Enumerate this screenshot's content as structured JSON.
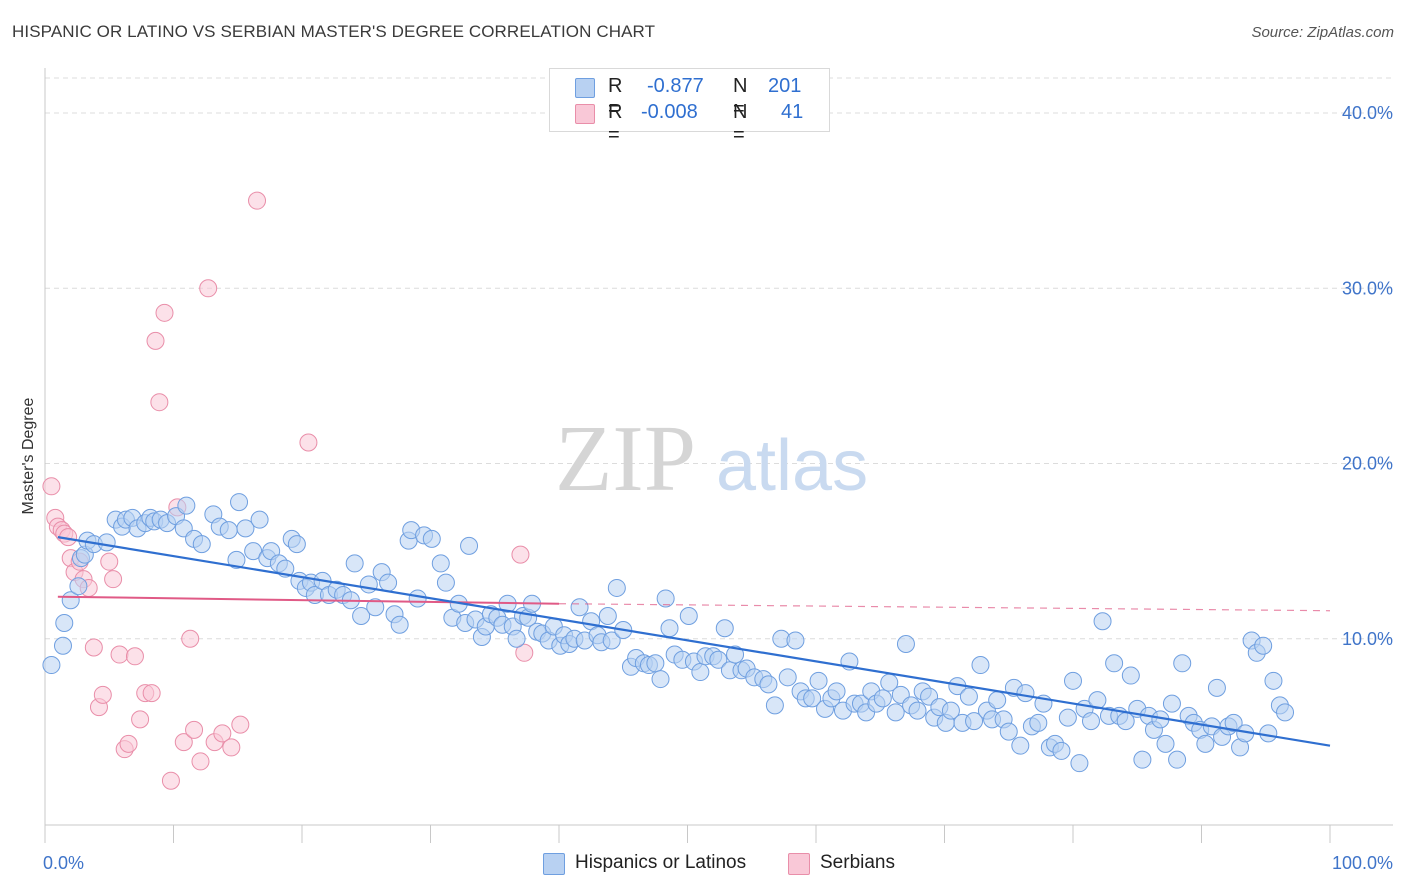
{
  "header": {
    "title": "HISPANIC OR LATINO VS SERBIAN MASTER'S DEGREE CORRELATION CHART",
    "source": "Source: ZipAtlas.com"
  },
  "stats_legend": {
    "r_label": "R =",
    "n_label": "N =",
    "rows": [
      {
        "r": "-0.877",
        "n": "201"
      },
      {
        "r": "-0.008",
        "n": "41"
      }
    ]
  },
  "watermark": {
    "part1": "ZIP",
    "part2": "atlas"
  },
  "colors": {
    "blue_fill": "#b8d1f2",
    "blue_stroke": "#6f9fe0",
    "blue_line": "#2f6fd0",
    "pink_fill": "#f9c8d7",
    "pink_stroke": "#e98ea9",
    "pink_line": "#e05a86",
    "tick_label": "#3f74c9",
    "grid": "#dcdcdc"
  },
  "chart_data": {
    "type": "scatter",
    "title": "HISPANIC OR LATINO VS SERBIAN MASTER'S DEGREE CORRELATION CHART",
    "xlabel": "",
    "ylabel": "Master's Degree",
    "xlim": [
      0,
      100
    ],
    "ylim": [
      0,
      42
    ],
    "x_tick_labels": [
      "0.0%",
      "100.0%"
    ],
    "y_ticks": [
      10,
      20,
      30,
      40
    ],
    "y_tick_labels": [
      "10.0%",
      "20.0%",
      "30.0%",
      "40.0%"
    ],
    "grid": true,
    "legend_position": "bottom-center",
    "series": [
      {
        "name": "Hispanics or Latinos",
        "color": "#6f9fe0",
        "R": -0.877,
        "N": 201,
        "trend": {
          "x": [
            1.0,
            100.0
          ],
          "y": [
            15.8,
            3.9
          ]
        },
        "points": [
          [
            0.5,
            8.5
          ],
          [
            1.4,
            9.6
          ],
          [
            1.5,
            10.9
          ],
          [
            2.0,
            12.2
          ],
          [
            2.6,
            13.0
          ],
          [
            2.8,
            14.6
          ],
          [
            3.1,
            14.8
          ],
          [
            3.3,
            15.6
          ],
          [
            3.8,
            15.4
          ],
          [
            4.8,
            15.5
          ],
          [
            5.5,
            16.8
          ],
          [
            6.0,
            16.4
          ],
          [
            6.3,
            16.8
          ],
          [
            6.8,
            16.9
          ],
          [
            7.2,
            16.3
          ],
          [
            7.8,
            16.6
          ],
          [
            8.2,
            16.9
          ],
          [
            8.5,
            16.7
          ],
          [
            9.0,
            16.8
          ],
          [
            9.5,
            16.6
          ],
          [
            10.2,
            17.0
          ],
          [
            10.8,
            16.3
          ],
          [
            11.0,
            17.6
          ],
          [
            11.6,
            15.7
          ],
          [
            12.2,
            15.4
          ],
          [
            13.1,
            17.1
          ],
          [
            13.6,
            16.4
          ],
          [
            14.3,
            16.2
          ],
          [
            14.9,
            14.5
          ],
          [
            15.1,
            17.8
          ],
          [
            15.6,
            16.3
          ],
          [
            16.2,
            15.0
          ],
          [
            16.7,
            16.8
          ],
          [
            17.3,
            14.6
          ],
          [
            17.6,
            15.0
          ],
          [
            18.2,
            14.3
          ],
          [
            18.7,
            14.0
          ],
          [
            19.2,
            15.7
          ],
          [
            19.6,
            15.4
          ],
          [
            19.8,
            13.3
          ],
          [
            20.3,
            12.9
          ],
          [
            20.7,
            13.2
          ],
          [
            21.0,
            12.5
          ],
          [
            21.6,
            13.3
          ],
          [
            22.1,
            12.5
          ],
          [
            22.7,
            12.8
          ],
          [
            23.2,
            12.5
          ],
          [
            23.8,
            12.2
          ],
          [
            24.1,
            14.3
          ],
          [
            24.6,
            11.3
          ],
          [
            25.2,
            13.1
          ],
          [
            25.7,
            11.8
          ],
          [
            26.2,
            13.8
          ],
          [
            26.7,
            13.2
          ],
          [
            27.2,
            11.4
          ],
          [
            27.6,
            10.8
          ],
          [
            28.3,
            15.6
          ],
          [
            28.5,
            16.2
          ],
          [
            29.0,
            12.3
          ],
          [
            29.5,
            15.9
          ],
          [
            30.1,
            15.7
          ],
          [
            30.8,
            14.3
          ],
          [
            31.2,
            13.2
          ],
          [
            31.7,
            11.2
          ],
          [
            32.2,
            12.0
          ],
          [
            32.7,
            10.9
          ],
          [
            33.0,
            15.3
          ],
          [
            33.5,
            11.1
          ],
          [
            34.0,
            10.1
          ],
          [
            34.3,
            10.7
          ],
          [
            34.7,
            11.4
          ],
          [
            35.2,
            11.2
          ],
          [
            35.6,
            10.8
          ],
          [
            36.0,
            12.0
          ],
          [
            36.4,
            10.7
          ],
          [
            36.7,
            10.0
          ],
          [
            37.2,
            11.3
          ],
          [
            37.6,
            11.2
          ],
          [
            37.9,
            12.0
          ],
          [
            38.3,
            10.4
          ],
          [
            38.7,
            10.3
          ],
          [
            39.2,
            9.9
          ],
          [
            39.6,
            10.7
          ],
          [
            40.1,
            9.6
          ],
          [
            40.4,
            10.2
          ],
          [
            40.8,
            9.7
          ],
          [
            41.2,
            10.0
          ],
          [
            41.6,
            11.8
          ],
          [
            42.0,
            9.9
          ],
          [
            42.5,
            11.0
          ],
          [
            43.0,
            10.2
          ],
          [
            43.3,
            9.8
          ],
          [
            43.8,
            11.3
          ],
          [
            44.1,
            9.9
          ],
          [
            44.5,
            12.9
          ],
          [
            45.0,
            10.5
          ],
          [
            45.6,
            8.4
          ],
          [
            46.0,
            8.9
          ],
          [
            46.6,
            8.6
          ],
          [
            47.0,
            8.5
          ],
          [
            47.5,
            8.6
          ],
          [
            47.9,
            7.7
          ],
          [
            48.3,
            12.3
          ],
          [
            48.6,
            10.6
          ],
          [
            49.0,
            9.1
          ],
          [
            49.6,
            8.8
          ],
          [
            50.1,
            11.3
          ],
          [
            50.5,
            8.7
          ],
          [
            51.0,
            8.1
          ],
          [
            51.4,
            9.0
          ],
          [
            52.0,
            9.0
          ],
          [
            52.4,
            8.8
          ],
          [
            52.9,
            10.6
          ],
          [
            53.3,
            8.2
          ],
          [
            53.7,
            9.1
          ],
          [
            54.2,
            8.2
          ],
          [
            54.6,
            8.3
          ],
          [
            55.2,
            7.8
          ],
          [
            55.9,
            7.7
          ],
          [
            56.3,
            7.4
          ],
          [
            56.8,
            6.2
          ],
          [
            57.3,
            10.0
          ],
          [
            57.8,
            7.8
          ],
          [
            58.4,
            9.9
          ],
          [
            58.8,
            7.0
          ],
          [
            59.2,
            6.6
          ],
          [
            59.7,
            6.6
          ],
          [
            60.2,
            7.6
          ],
          [
            60.7,
            6.0
          ],
          [
            61.2,
            6.6
          ],
          [
            61.6,
            7.0
          ],
          [
            62.1,
            5.9
          ],
          [
            62.6,
            8.7
          ],
          [
            63.0,
            6.3
          ],
          [
            63.5,
            6.3
          ],
          [
            63.9,
            5.8
          ],
          [
            64.3,
            7.0
          ],
          [
            64.7,
            6.3
          ],
          [
            65.2,
            6.6
          ],
          [
            65.7,
            7.5
          ],
          [
            66.2,
            5.8
          ],
          [
            66.6,
            6.8
          ],
          [
            67.0,
            9.7
          ],
          [
            67.4,
            6.2
          ],
          [
            67.9,
            5.9
          ],
          [
            68.3,
            7.0
          ],
          [
            68.8,
            6.7
          ],
          [
            69.2,
            5.5
          ],
          [
            69.6,
            6.1
          ],
          [
            70.1,
            5.2
          ],
          [
            70.5,
            5.9
          ],
          [
            71.0,
            7.3
          ],
          [
            71.4,
            5.2
          ],
          [
            71.9,
            6.7
          ],
          [
            72.3,
            5.3
          ],
          [
            72.8,
            8.5
          ],
          [
            73.3,
            5.9
          ],
          [
            73.7,
            5.4
          ],
          [
            74.1,
            6.5
          ],
          [
            74.6,
            5.4
          ],
          [
            75.0,
            4.7
          ],
          [
            75.4,
            7.2
          ],
          [
            75.9,
            3.9
          ],
          [
            76.3,
            6.9
          ],
          [
            76.8,
            5.0
          ],
          [
            77.3,
            5.2
          ],
          [
            77.7,
            6.3
          ],
          [
            78.2,
            3.8
          ],
          [
            78.6,
            4.0
          ],
          [
            79.1,
            3.6
          ],
          [
            79.6,
            5.5
          ],
          [
            80.0,
            7.6
          ],
          [
            80.5,
            2.9
          ],
          [
            80.9,
            6.0
          ],
          [
            81.4,
            5.3
          ],
          [
            81.9,
            6.5
          ],
          [
            82.3,
            11.0
          ],
          [
            82.8,
            5.6
          ],
          [
            83.2,
            8.6
          ],
          [
            83.6,
            5.6
          ],
          [
            84.1,
            5.3
          ],
          [
            84.5,
            7.9
          ],
          [
            85.0,
            6.0
          ],
          [
            85.4,
            3.1
          ],
          [
            85.9,
            5.6
          ],
          [
            86.3,
            4.8
          ],
          [
            86.8,
            5.4
          ],
          [
            87.2,
            4.0
          ],
          [
            87.7,
            6.3
          ],
          [
            88.1,
            3.1
          ],
          [
            88.5,
            8.6
          ],
          [
            89.0,
            5.6
          ],
          [
            89.4,
            5.2
          ],
          [
            89.9,
            4.8
          ],
          [
            90.3,
            4.0
          ],
          [
            90.8,
            5.0
          ],
          [
            91.2,
            7.2
          ],
          [
            91.6,
            4.4
          ],
          [
            92.1,
            5.0
          ],
          [
            92.5,
            5.2
          ],
          [
            93.0,
            3.8
          ],
          [
            93.4,
            4.6
          ],
          [
            93.9,
            9.9
          ],
          [
            94.3,
            9.2
          ],
          [
            94.8,
            9.6
          ],
          [
            95.2,
            4.6
          ],
          [
            95.6,
            7.6
          ],
          [
            96.1,
            6.2
          ],
          [
            96.5,
            5.8
          ]
        ]
      },
      {
        "name": "Serbians",
        "color": "#e98ea9",
        "R": -0.008,
        "N": 41,
        "trend": {
          "x": [
            1.0,
            40.0
          ],
          "y": [
            12.4,
            12.0
          ],
          "dashed_x": [
            40.0,
            100.0
          ],
          "dashed_y": [
            12.0,
            11.6
          ]
        },
        "points": [
          [
            0.5,
            18.7
          ],
          [
            0.8,
            16.9
          ],
          [
            1.0,
            16.4
          ],
          [
            1.3,
            16.2
          ],
          [
            1.5,
            16.0
          ],
          [
            1.8,
            15.8
          ],
          [
            2.0,
            14.6
          ],
          [
            2.3,
            13.8
          ],
          [
            2.7,
            14.4
          ],
          [
            3.0,
            13.4
          ],
          [
            3.4,
            12.9
          ],
          [
            3.8,
            9.5
          ],
          [
            4.2,
            6.1
          ],
          [
            4.5,
            6.8
          ],
          [
            5.0,
            14.4
          ],
          [
            5.3,
            13.4
          ],
          [
            5.8,
            9.1
          ],
          [
            6.2,
            3.7
          ],
          [
            6.5,
            4.0
          ],
          [
            7.0,
            9.0
          ],
          [
            7.4,
            5.4
          ],
          [
            7.8,
            6.9
          ],
          [
            8.3,
            6.9
          ],
          [
            8.6,
            27.0
          ],
          [
            8.9,
            23.5
          ],
          [
            9.3,
            28.6
          ],
          [
            9.8,
            1.9
          ],
          [
            10.3,
            17.5
          ],
          [
            10.8,
            4.1
          ],
          [
            11.3,
            10.0
          ],
          [
            11.6,
            4.8
          ],
          [
            12.1,
            3.0
          ],
          [
            12.7,
            30.0
          ],
          [
            13.2,
            4.1
          ],
          [
            13.8,
            4.6
          ],
          [
            14.5,
            3.8
          ],
          [
            15.2,
            5.1
          ],
          [
            16.5,
            35.0
          ],
          [
            20.5,
            21.2
          ],
          [
            37.0,
            14.8
          ],
          [
            37.3,
            9.2
          ]
        ]
      }
    ]
  }
}
